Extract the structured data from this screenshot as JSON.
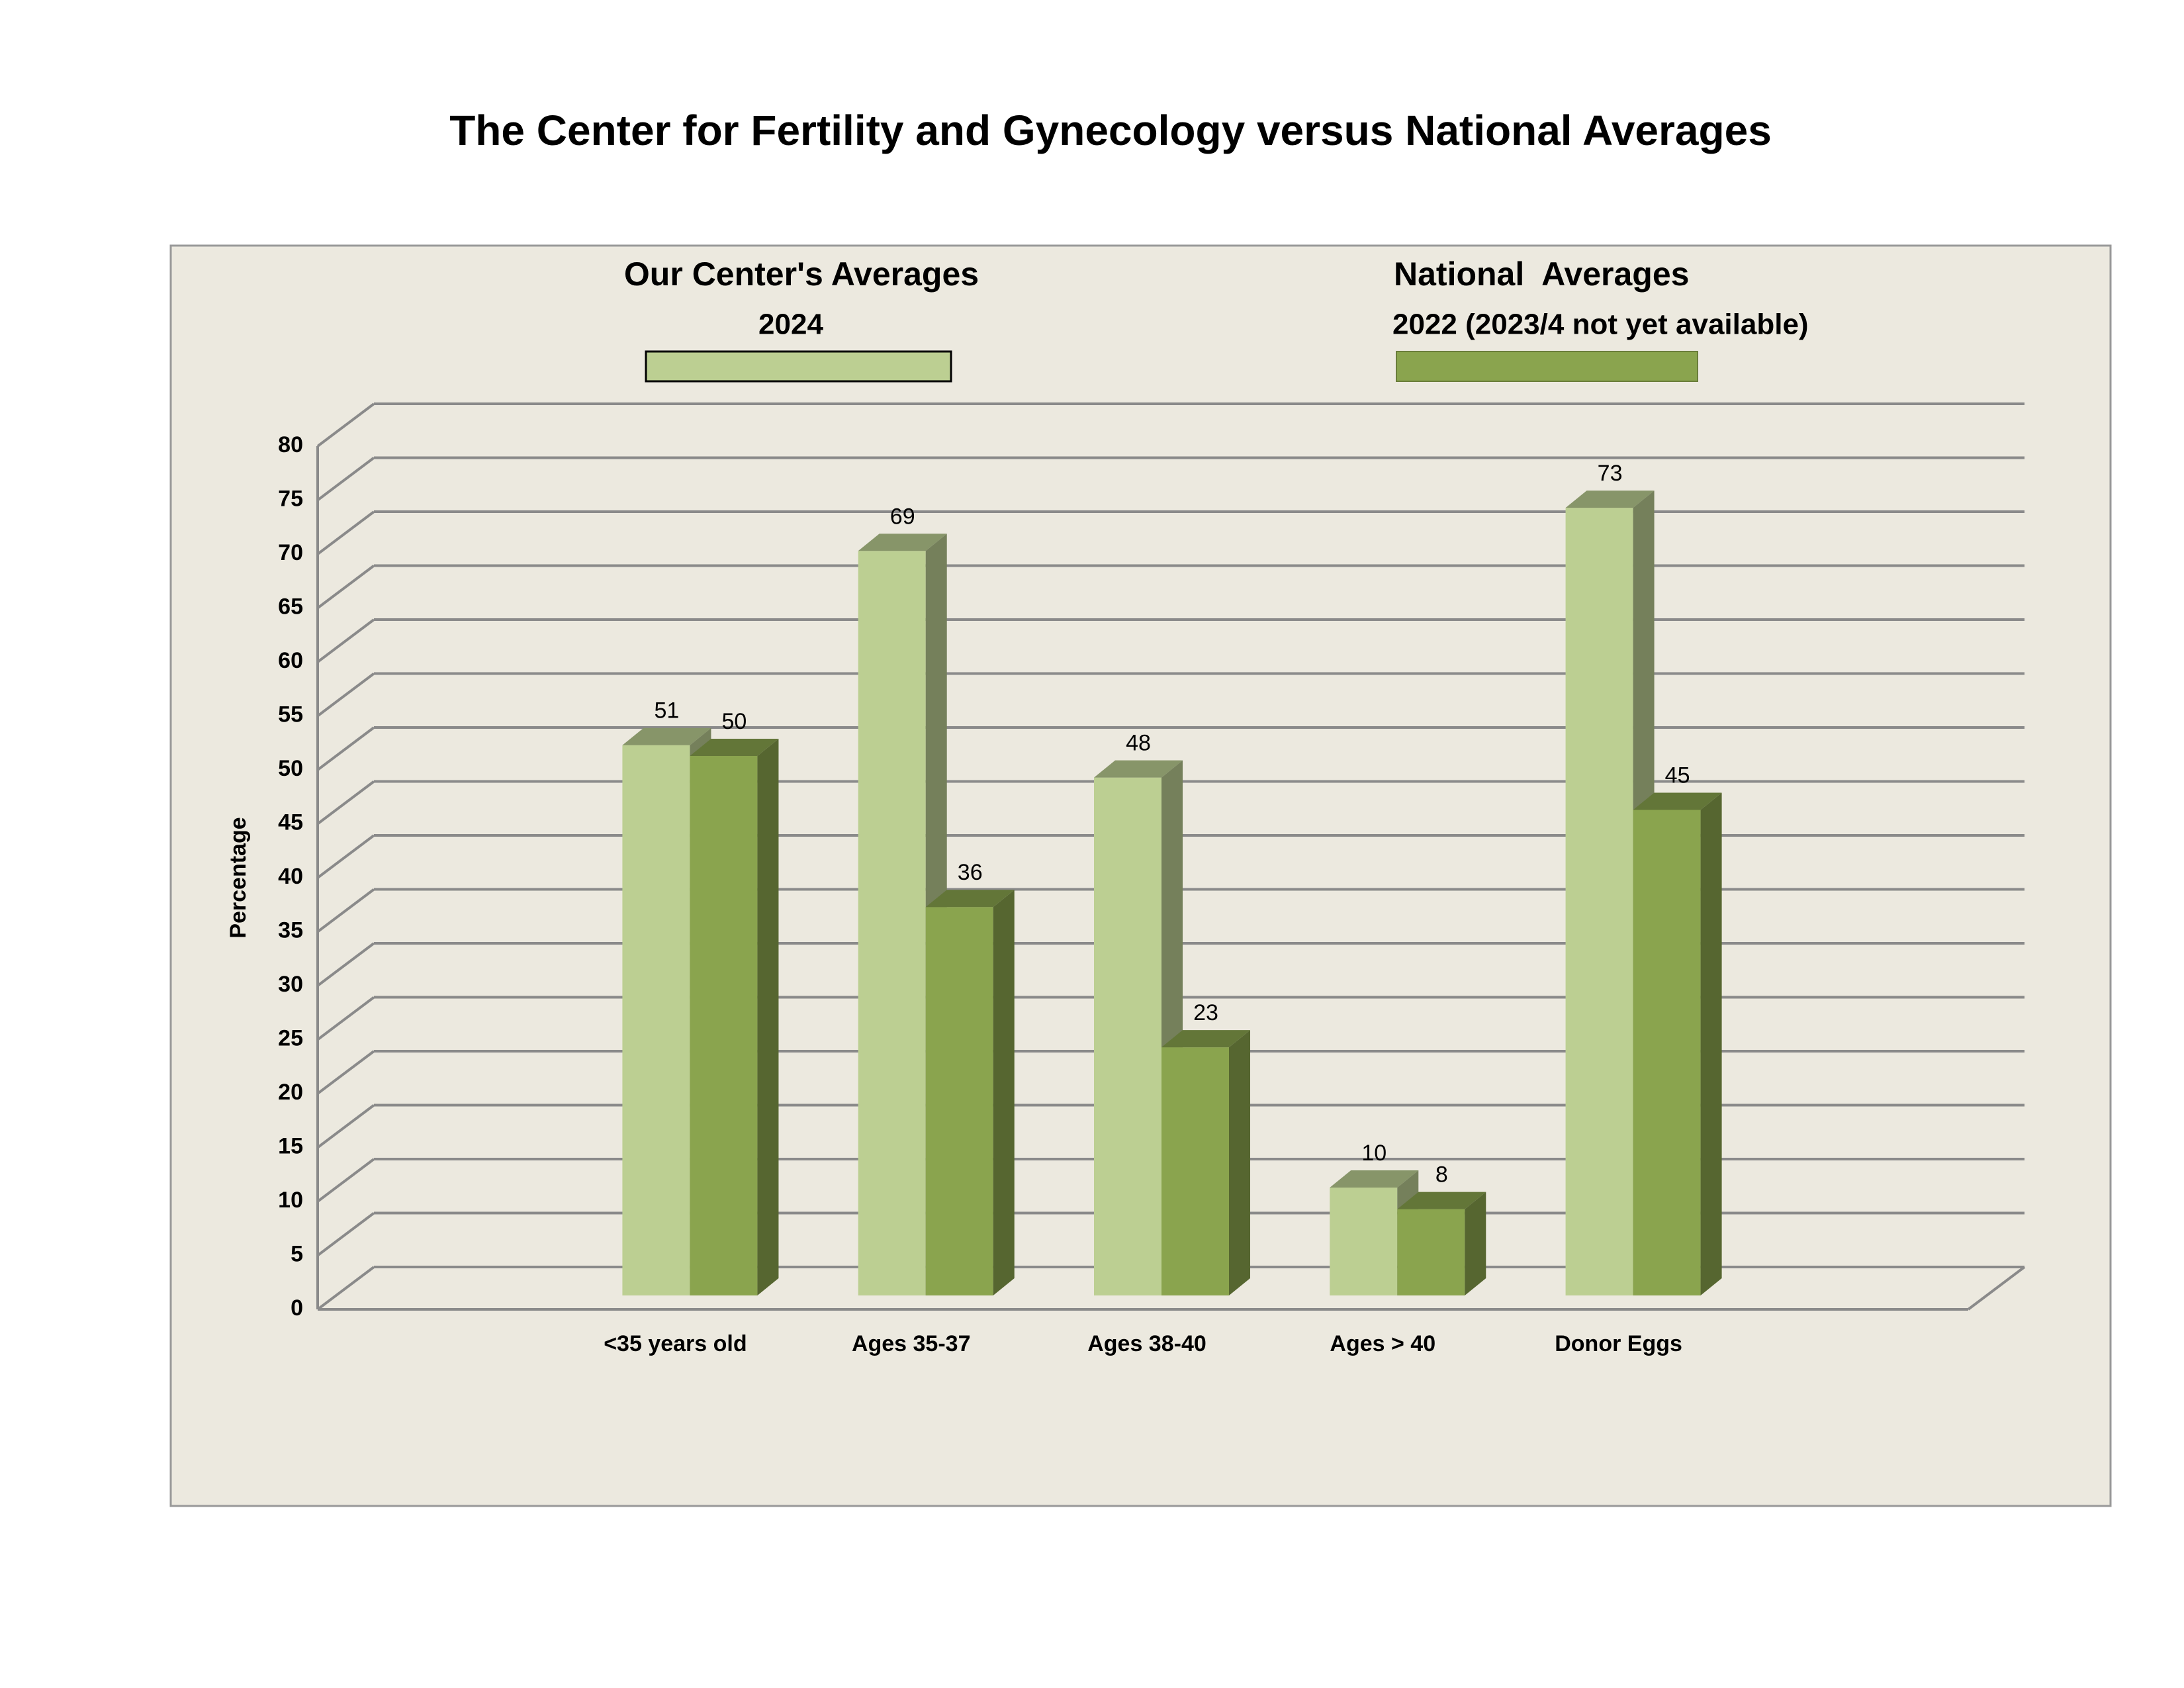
{
  "chart_data": {
    "type": "bar3d",
    "title": "The Center for Fertility and Gynecology versus National Averages",
    "y_label": "Percentage",
    "categories": [
      "<35 years old",
      "Ages 35-37",
      "Ages 38-40",
      "Ages > 40",
      "Donor Eggs"
    ],
    "series": [
      {
        "name": "Our Center's Averages",
        "period": "2024",
        "color": "#bccf92",
        "values": [
          51,
          69,
          48,
          10,
          73
        ]
      },
      {
        "name": "National  Averages",
        "period": "2022 (2023/4 not yet available)",
        "color": "#8aa44e",
        "values": [
          50,
          36,
          23,
          8,
          45
        ]
      }
    ],
    "ylim": [
      0,
      80
    ],
    "yticks": [
      0,
      5,
      10,
      15,
      20,
      25,
      30,
      35,
      40,
      45,
      50,
      55,
      60,
      65,
      70,
      75,
      80
    ],
    "grid": true
  }
}
